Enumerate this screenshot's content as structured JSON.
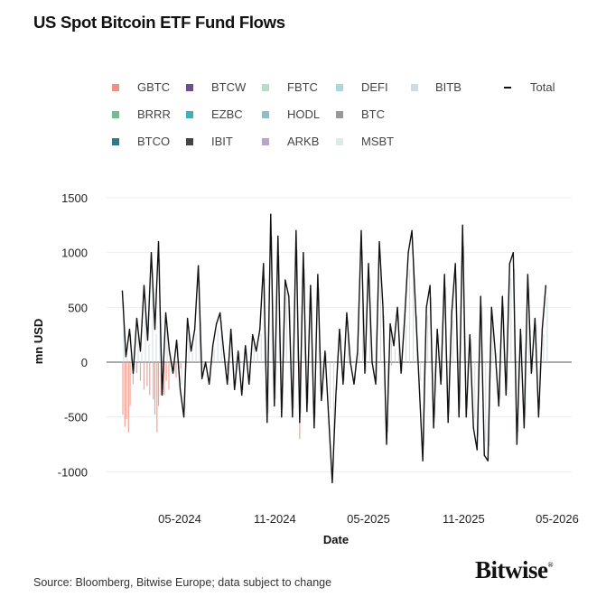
{
  "chart_data": {
    "type": "line",
    "title": "US Spot Bitcoin ETF Fund Flows",
    "xlabel": "Date",
    "ylabel": "mn USD",
    "ylim": [
      -1200,
      1500
    ],
    "yticks": [
      "1500",
      "1000",
      "500",
      "0",
      "-500",
      "-1000"
    ],
    "ytick_values": [
      1500,
      1000,
      500,
      0,
      -500,
      -1000
    ],
    "xticks": [
      "05-2024",
      "11-2024",
      "05-2025",
      "11-2025",
      "05-2026"
    ],
    "xtick_dates": [
      "2024-05-01",
      "2024-11-01",
      "2025-05-01",
      "2025-11-01",
      "2026-05-01"
    ],
    "grid": true,
    "legend_position": "top",
    "legend": [
      {
        "name": "GBTC",
        "color": "#f0917f"
      },
      {
        "name": "BTCW",
        "color": "#6b4f8f"
      },
      {
        "name": "FBTC",
        "color": "#b9dcc6"
      },
      {
        "name": "DEFI",
        "color": "#a9d8df"
      },
      {
        "name": "BITB",
        "color": "#cfdde3"
      },
      {
        "name": "Total",
        "color": "#111111",
        "marker": "line"
      },
      {
        "name": "BRRR",
        "color": "#6fbf8e"
      },
      {
        "name": "EZBC",
        "color": "#3fb0c0"
      },
      {
        "name": "HODL",
        "color": "#8fbcc6"
      },
      {
        "name": "BTC",
        "color": "#999999"
      },
      {
        "name": "BTCO",
        "color": "#2f7a87"
      },
      {
        "name": "IBIT",
        "color": "#444444"
      },
      {
        "name": "ARKB",
        "color": "#b7a4cc"
      },
      {
        "name": "MSBT",
        "color": "#dcebe4"
      }
    ],
    "series": [
      {
        "name": "Total",
        "type": "line",
        "color": "#111111",
        "x_start": "2024-01-11",
        "x_step_days": 7,
        "values": [
          650,
          50,
          300,
          -100,
          400,
          100,
          700,
          200,
          1000,
          300,
          1100,
          -300,
          450,
          100,
          -100,
          200,
          -250,
          -500,
          400,
          100,
          300,
          880,
          -150,
          0,
          -200,
          150,
          350,
          450,
          100,
          -200,
          300,
          -250,
          100,
          -300,
          150,
          -200,
          250,
          100,
          300,
          900,
          -550,
          1350,
          -400,
          1150,
          -500,
          750,
          600,
          -500,
          1200,
          -550,
          1000,
          -450,
          700,
          -600,
          800,
          -350,
          100,
          -500,
          -1100,
          -300,
          300,
          -200,
          450,
          0,
          -200,
          100,
          1200,
          -100,
          900,
          0,
          -200,
          1100,
          500,
          -750,
          350,
          150,
          500,
          -100,
          400,
          1000,
          1200,
          500,
          -200,
          -900,
          500,
          700,
          -600,
          300,
          -200,
          800,
          -550,
          450,
          900,
          -500,
          1250,
          -500,
          250,
          -600,
          -800,
          600,
          -850,
          -900,
          500,
          100,
          -400,
          600,
          -300,
          900,
          1000,
          -750,
          300,
          -600,
          800,
          -100,
          400,
          -500,
          300,
          700
        ]
      },
      {
        "name": "GBTC",
        "type": "bar",
        "color": "#f0917f",
        "points": [
          [
            "2024-01-12",
            -480
          ],
          [
            "2024-01-16",
            -590
          ],
          [
            "2024-01-19",
            -520
          ],
          [
            "2024-01-23",
            -640
          ],
          [
            "2024-01-26",
            -400
          ],
          [
            "2024-02-01",
            -200
          ],
          [
            "2024-02-08",
            -100
          ],
          [
            "2024-02-15",
            -170
          ],
          [
            "2024-02-22",
            -250
          ],
          [
            "2024-02-28",
            -220
          ],
          [
            "2024-03-04",
            -300
          ],
          [
            "2024-03-11",
            -340
          ],
          [
            "2024-03-14",
            -480
          ],
          [
            "2024-03-18",
            -640
          ],
          [
            "2024-03-21",
            -400
          ],
          [
            "2024-03-26",
            -300
          ],
          [
            "2024-04-01",
            -300
          ],
          [
            "2024-04-05",
            -170
          ],
          [
            "2024-04-10",
            -250
          ],
          [
            "2024-04-17",
            -80
          ],
          [
            "2024-04-24",
            -140
          ],
          [
            "2024-05-03",
            -60
          ],
          [
            "2024-06-20",
            -50
          ],
          [
            "2024-08-01",
            -80
          ],
          [
            "2024-12-19",
            -700
          ],
          [
            "2025-06-15",
            -30
          ]
        ]
      }
    ]
  },
  "footer": {
    "source": "Source: Bloomberg, Bitwise Europe; data subject to change",
    "logo": "Bitwise"
  }
}
